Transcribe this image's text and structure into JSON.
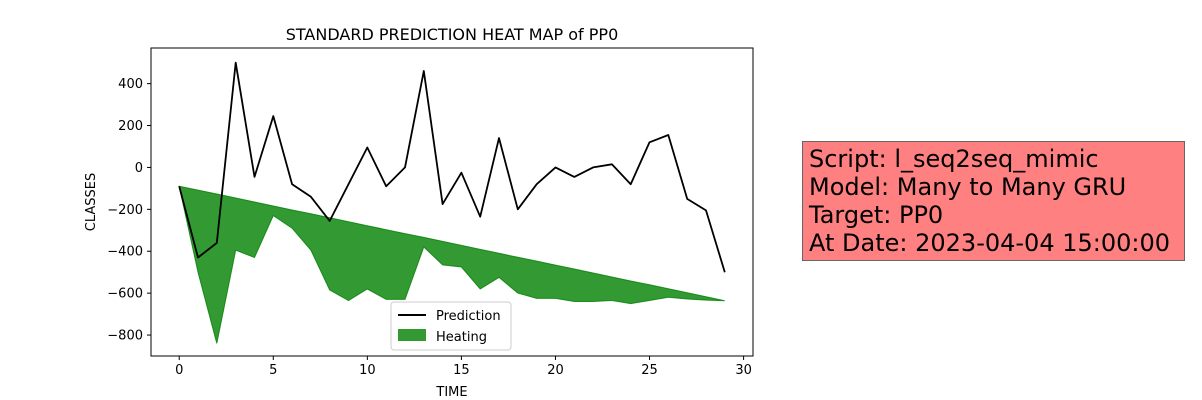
{
  "chart_data": {
    "type": "line",
    "title": "STANDARD PREDICTION HEAT MAP of PP0",
    "xlabel": "TIME",
    "ylabel": "CLASSES",
    "xlim": [
      -1.5,
      30.5
    ],
    "ylim": [
      -900,
      570
    ],
    "xticks": [
      0,
      5,
      10,
      15,
      20,
      25,
      30
    ],
    "yticks": [
      -800,
      -600,
      -400,
      -200,
      0,
      200,
      400
    ],
    "grid": false,
    "legend_position": "lower-center",
    "series": [
      {
        "name": "Prediction",
        "color": "#000000",
        "x": [
          0,
          1,
          2,
          3,
          4,
          5,
          6,
          7,
          8,
          9,
          10,
          11,
          12,
          13,
          14,
          15,
          16,
          17,
          18,
          19,
          20,
          21,
          22,
          23,
          24,
          25,
          26,
          27,
          28,
          29
        ],
        "y": [
          -90,
          -430,
          -360,
          500,
          -45,
          245,
          -80,
          -140,
          -255,
          -80,
          95,
          -90,
          0,
          460,
          -175,
          -25,
          -235,
          140,
          -200,
          -80,
          0,
          -45,
          0,
          15,
          -80,
          120,
          155,
          -150,
          -205,
          -500
        ]
      },
      {
        "name": "Heating",
        "color": "#008000",
        "type": "area",
        "x": [
          0,
          1,
          2,
          3,
          4,
          5,
          6,
          7,
          8,
          9,
          10,
          11,
          12,
          13,
          14,
          15,
          16,
          17,
          18,
          19,
          20,
          21,
          22,
          23,
          24,
          25,
          26,
          27,
          28,
          29
        ],
        "y_upper": [
          -90,
          -108,
          -127,
          -146,
          -165,
          -184,
          -203,
          -221,
          -240,
          -259,
          -278,
          -297,
          -316,
          -334,
          -353,
          -372,
          -391,
          -410,
          -429,
          -447,
          -466,
          -485,
          -504,
          -523,
          -542,
          -560,
          -579,
          -598,
          -617,
          -636
        ],
        "y_lower": [
          -90,
          -500,
          -840,
          -395,
          -430,
          -230,
          -290,
          -395,
          -585,
          -635,
          -580,
          -630,
          -630,
          -380,
          -465,
          -475,
          -580,
          -525,
          -600,
          -625,
          -625,
          -640,
          -640,
          -635,
          -650,
          -635,
          -620,
          -628,
          -633,
          -636
        ]
      }
    ]
  },
  "info_box": {
    "lines": [
      "Script: l_seq2seq_mimic",
      "Model: Many to Many GRU",
      "Target: PP0",
      "At Date: 2023-04-04 15:00:00"
    ],
    "background": "#ff8080"
  }
}
